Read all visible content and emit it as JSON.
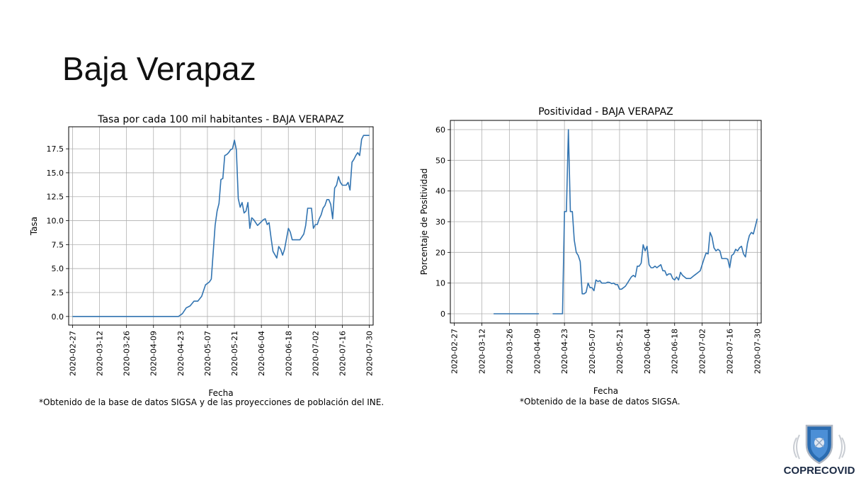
{
  "slide": {
    "title": "Baja Verapaz"
  },
  "charts": [
    {
      "title": "Tasa por cada 100 mil habitantes - BAJA VERAPAZ",
      "xlabel": "Fecha",
      "ylabel": "Tasa",
      "footnote": "*Obtenido de la base de datos SIGSA y de las proyecciones de población del INE."
    },
    {
      "title": "Positividad - BAJA VERAPAZ",
      "xlabel": "Fecha",
      "ylabel": "Porcentaje de Positividad",
      "footnote": "*Obtenido de la base de datos SIGSA."
    }
  ],
  "logo": {
    "text": "COPRECOVID",
    "icon": "shield-emblem-icon"
  },
  "chart_data": [
    {
      "type": "line",
      "title": "Tasa por cada 100 mil habitantes - BAJA VERAPAZ",
      "xlabel": "Fecha",
      "ylabel": "Tasa",
      "x_ticks": [
        "2020-02-27",
        "2020-03-12",
        "2020-03-26",
        "2020-04-09",
        "2020-04-23",
        "2020-05-07",
        "2020-05-21",
        "2020-06-04",
        "2020-06-18",
        "2020-07-02",
        "2020-07-16",
        "2020-07-30"
      ],
      "y_ticks": [
        "0.0",
        "2.5",
        "5.0",
        "7.5",
        "10.0",
        "12.5",
        "15.0",
        "17.5"
      ],
      "xlim": [
        "2020-02-25",
        "2020-08-01"
      ],
      "ylim": [
        -0.9,
        19.8
      ],
      "grid": true,
      "color": "#3274b1",
      "series": [
        {
          "x": [
            "2020-02-27",
            "2020-04-22",
            "2020-04-24",
            "2020-04-26",
            "2020-04-28",
            "2020-04-30",
            "2020-05-02",
            "2020-05-04",
            "2020-05-06",
            "2020-05-08",
            "2020-05-09",
            "2020-05-11",
            "2020-05-12",
            "2020-05-13",
            "2020-05-14",
            "2020-05-15",
            "2020-05-16",
            "2020-05-17",
            "2020-05-18",
            "2020-05-19",
            "2020-05-20",
            "2020-05-21",
            "2020-05-22",
            "2020-05-23",
            "2020-05-24",
            "2020-05-25",
            "2020-05-26",
            "2020-05-27",
            "2020-05-28",
            "2020-05-29",
            "2020-05-30",
            "2020-05-31",
            "2020-06-02",
            "2020-06-04",
            "2020-06-05",
            "2020-06-06",
            "2020-06-07",
            "2020-06-08",
            "2020-06-09",
            "2020-06-10",
            "2020-06-12",
            "2020-06-13",
            "2020-06-14",
            "2020-06-15",
            "2020-06-16",
            "2020-06-18",
            "2020-06-19",
            "2020-06-20",
            "2020-06-21",
            "2020-06-22",
            "2020-06-23",
            "2020-06-24",
            "2020-06-26",
            "2020-06-27",
            "2020-06-28",
            "2020-06-30",
            "2020-07-01",
            "2020-07-02",
            "2020-07-03",
            "2020-07-04",
            "2020-07-05",
            "2020-07-06",
            "2020-07-07",
            "2020-07-08",
            "2020-07-09",
            "2020-07-10",
            "2020-07-11",
            "2020-07-12",
            "2020-07-13",
            "2020-07-14",
            "2020-07-15",
            "2020-07-16",
            "2020-07-17",
            "2020-07-18",
            "2020-07-19",
            "2020-07-20",
            "2020-07-21",
            "2020-07-22",
            "2020-07-23",
            "2020-07-24",
            "2020-07-25",
            "2020-07-26",
            "2020-07-27",
            "2020-07-28",
            "2020-07-29",
            "2020-07-30"
          ],
          "y": [
            0.0,
            0.0,
            0.3,
            0.9,
            1.1,
            1.6,
            1.6,
            2.1,
            3.3,
            3.6,
            3.9,
            9.5,
            11.0,
            11.8,
            14.3,
            14.4,
            16.8,
            16.9,
            17.1,
            17.4,
            17.5,
            18.4,
            17.4,
            12.3,
            11.4,
            11.9,
            10.8,
            11.0,
            11.9,
            9.2,
            10.3,
            10.1,
            9.5,
            9.9,
            10.1,
            10.2,
            9.6,
            9.8,
            8.2,
            6.8,
            6.1,
            7.3,
            7.0,
            6.4,
            7.0,
            9.2,
            8.8,
            8.0,
            8.0,
            8.0,
            8.0,
            8.0,
            8.6,
            9.5,
            11.3,
            11.3,
            9.2,
            9.6,
            9.6,
            10.2,
            10.6,
            11.3,
            11.6,
            12.2,
            12.2,
            11.7,
            10.2,
            13.4,
            13.7,
            14.6,
            14.0,
            13.7,
            13.7,
            13.7,
            14.0,
            13.2,
            16.1,
            16.4,
            16.8,
            17.1,
            16.8,
            18.5,
            18.9,
            18.9,
            18.9,
            18.9
          ]
        }
      ]
    },
    {
      "type": "line",
      "title": "Positividad - BAJA VERAPAZ",
      "xlabel": "Fecha",
      "ylabel": "Porcentaje de Positividad",
      "x_ticks": [
        "2020-02-27",
        "2020-03-12",
        "2020-03-26",
        "2020-04-09",
        "2020-04-23",
        "2020-05-07",
        "2020-05-21",
        "2020-06-04",
        "2020-06-18",
        "2020-07-02",
        "2020-07-16",
        "2020-07-30"
      ],
      "y_ticks": [
        "0",
        "10",
        "20",
        "30",
        "40",
        "50",
        "60"
      ],
      "xlim": [
        "2020-02-25",
        "2020-08-01"
      ],
      "ylim": [
        -3,
        63
      ],
      "grid": true,
      "color": "#3274b1",
      "series": [
        {
          "x": [
            "2020-03-18",
            "2020-04-10"
          ],
          "y": [
            0,
            0
          ]
        },
        {
          "x": [
            "2020-04-17",
            "2020-04-22",
            "2020-04-23",
            "2020-04-24",
            "2020-04-25",
            "2020-04-26",
            "2020-04-27",
            "2020-04-28",
            "2020-04-29",
            "2020-04-30",
            "2020-05-01",
            "2020-05-02",
            "2020-05-03",
            "2020-05-04",
            "2020-05-05",
            "2020-05-06",
            "2020-05-07",
            "2020-05-08",
            "2020-05-09",
            "2020-05-10",
            "2020-05-11",
            "2020-05-12",
            "2020-05-13",
            "2020-05-14",
            "2020-05-15",
            "2020-05-16",
            "2020-05-17",
            "2020-05-18",
            "2020-05-19",
            "2020-05-20",
            "2020-05-21",
            "2020-05-22",
            "2020-05-23",
            "2020-05-24",
            "2020-05-25",
            "2020-05-26",
            "2020-05-27",
            "2020-05-28",
            "2020-05-29",
            "2020-05-30",
            "2020-05-31",
            "2020-06-01",
            "2020-06-02",
            "2020-06-03",
            "2020-06-04",
            "2020-06-05",
            "2020-06-06",
            "2020-06-07",
            "2020-06-08",
            "2020-06-09",
            "2020-06-10",
            "2020-06-11",
            "2020-06-12",
            "2020-06-13",
            "2020-06-14",
            "2020-06-15",
            "2020-06-16",
            "2020-06-17",
            "2020-06-18",
            "2020-06-19",
            "2020-06-20",
            "2020-06-21",
            "2020-06-22",
            "2020-06-23",
            "2020-06-24",
            "2020-06-25",
            "2020-06-26",
            "2020-06-27",
            "2020-06-28",
            "2020-06-29",
            "2020-06-30",
            "2020-07-01",
            "2020-07-02",
            "2020-07-03",
            "2020-07-04",
            "2020-07-05",
            "2020-07-06",
            "2020-07-07",
            "2020-07-08",
            "2020-07-09",
            "2020-07-10",
            "2020-07-11",
            "2020-07-12",
            "2020-07-13",
            "2020-07-14",
            "2020-07-15",
            "2020-07-16",
            "2020-07-17",
            "2020-07-18",
            "2020-07-19",
            "2020-07-20",
            "2020-07-21",
            "2020-07-22",
            "2020-07-23",
            "2020-07-24",
            "2020-07-25",
            "2020-07-26",
            "2020-07-27",
            "2020-07-28",
            "2020-07-29",
            "2020-07-30"
          ],
          "y": [
            0,
            0,
            33.3,
            33.3,
            60,
            33.3,
            33.3,
            24,
            20,
            19,
            17,
            6.5,
            6.5,
            7,
            10,
            8.5,
            8.5,
            7.5,
            11,
            10.5,
            10.8,
            10,
            10,
            10,
            10.3,
            10.2,
            9.8,
            10,
            9.5,
            9.5,
            8,
            8,
            8.5,
            9,
            10,
            11,
            12,
            12.5,
            12,
            15.5,
            15.5,
            16.5,
            22.5,
            20.5,
            22,
            16,
            15,
            15,
            15.5,
            15,
            15.5,
            16,
            14,
            14,
            12.5,
            13,
            13,
            11.5,
            11,
            12,
            11,
            13.5,
            12.5,
            12,
            11.5,
            11.5,
            11.5,
            12,
            12.5,
            13,
            13.5,
            14,
            16,
            18,
            19.8,
            19.5,
            26.5,
            25,
            21.5,
            20.5,
            21,
            20.5,
            18,
            18,
            18,
            17.8,
            15,
            19,
            19.5,
            21,
            20.5,
            21.5,
            22,
            19.5,
            18.5,
            23,
            25.5,
            26.5,
            26,
            28.5,
            31
          ]
        }
      ]
    }
  ]
}
